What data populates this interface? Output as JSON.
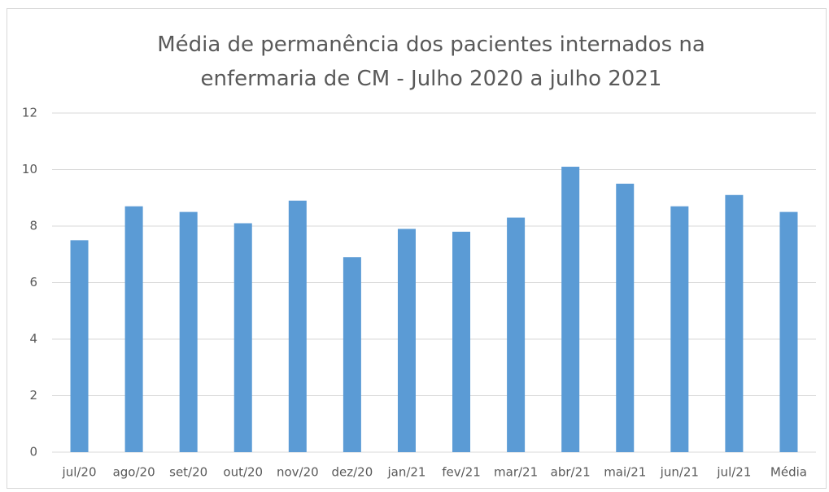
{
  "chart_data": {
    "type": "bar",
    "title": "Média de permanência dos pacientes internados na enfermaria de CM - Julho 2020 a julho 2021",
    "categories": [
      "jul/20",
      "ago/20",
      "set/20",
      "out/20",
      "nov/20",
      "dez/20",
      "jan/21",
      "fev/21",
      "mar/21",
      "abr/21",
      "mai/21",
      "jun/21",
      "jul/21",
      "Média"
    ],
    "values": [
      7.5,
      8.7,
      8.5,
      8.1,
      8.9,
      6.9,
      7.9,
      7.8,
      8.3,
      10.1,
      9.5,
      8.7,
      9.1,
      8.5
    ],
    "color": "#5b9bd5",
    "ylim": [
      0,
      12
    ],
    "yticks": [
      0,
      2,
      4,
      6,
      8,
      10,
      12
    ],
    "grid": true
  }
}
